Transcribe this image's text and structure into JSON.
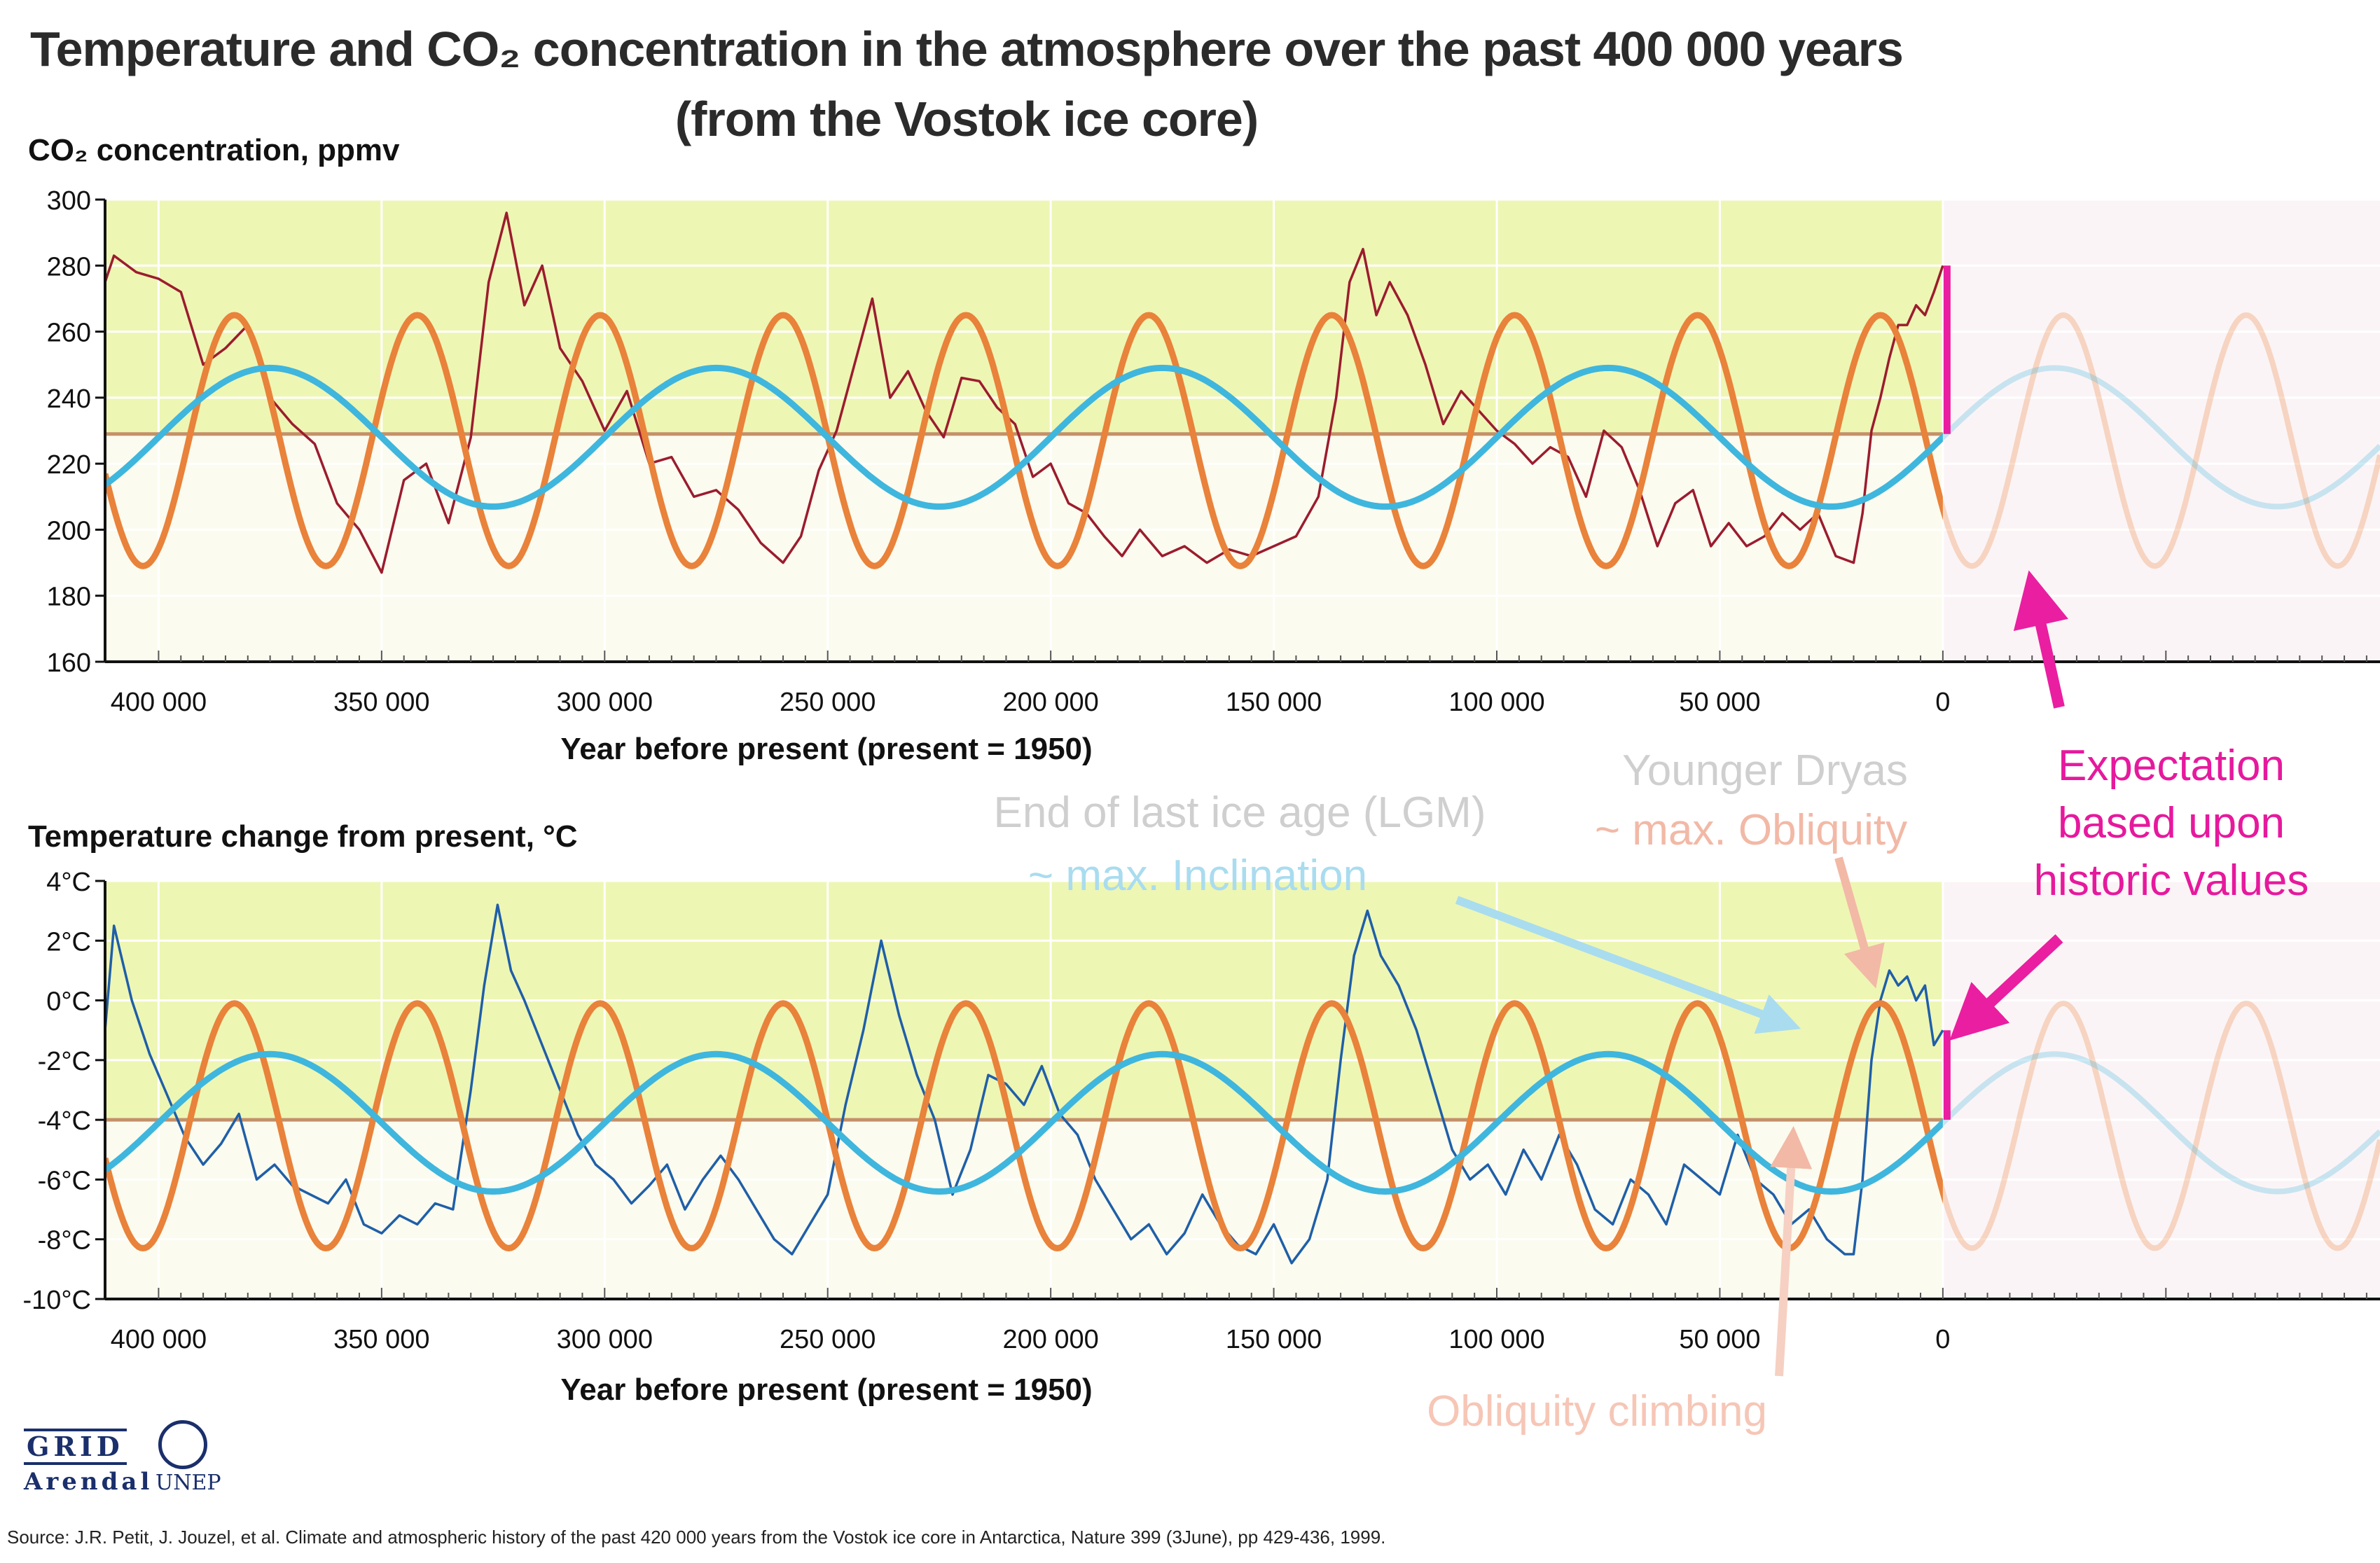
{
  "title": {
    "line1": "Temperature and CO₂ concentration in the atmosphere over the past 400 000 years",
    "line2": "(from the Vostok ice core)"
  },
  "colors": {
    "co2_series": "#9b1c2e",
    "temperature_series": "#1f5fa8",
    "obliquity_fit": "#e9823a",
    "inclination_fit": "#3fb6dd",
    "expectation": "#ea1ea0",
    "baseline": "#c4906a",
    "band_fill": "#eef6b4"
  },
  "annotations": {
    "lgm": "End of last ice age (LGM)",
    "inclination": "~ max. Inclination",
    "younger_dryas": "Younger Dryas",
    "obliquity": "~ max. Obliquity",
    "expectation_1": "Expectation",
    "expectation_2": "based upon",
    "expectation_3": "historic values",
    "obliquity_climbing": "Obliquity climbing"
  },
  "logos": {
    "grid": "GRID",
    "arendal": "Arendal",
    "unep": "UNEP"
  },
  "source": "Source: J.R. Petit, J. Jouzel, et al. Climate and atmospheric history of the past 420 000 years from the Vostok ice core in Antarctica, Nature 399 (3June), pp 429-436, 1999.",
  "chart_data": [
    {
      "type": "line",
      "ylabel": "CO₂ concentration, ppmv",
      "xlabel": "Year before present (present = 1950)",
      "xlim": [
        412000,
        -98000
      ],
      "ylim": [
        160,
        300
      ],
      "x_ticks": [
        400000,
        350000,
        300000,
        250000,
        200000,
        150000,
        100000,
        50000,
        0
      ],
      "x_tick_labels": [
        "400 000",
        "350 000",
        "300 000",
        "250 000",
        "200 000",
        "150 000",
        "100 000",
        "50 000",
        "0"
      ],
      "y_ticks": [
        160,
        180,
        200,
        220,
        240,
        260,
        280,
        300
      ],
      "y_tick_labels": [
        "160",
        "180",
        "200",
        "220",
        "240",
        "260",
        "280",
        "300"
      ],
      "baseline": 229,
      "fits": {
        "obliquity_center": 227,
        "obliquity_amp": 38,
        "obliquity_period": 41000,
        "inclination_center": 228,
        "inclination_amp": 21,
        "inclination_period": 100000
      },
      "series": [
        {
          "name": "CO2",
          "x": [
            412000,
            410000,
            405000,
            400000,
            395000,
            390000,
            385000,
            380000,
            375000,
            370000,
            365000,
            360000,
            355000,
            350000,
            345000,
            340000,
            335000,
            330000,
            326000,
            322000,
            318000,
            314000,
            310000,
            305000,
            300000,
            295000,
            290000,
            285000,
            280000,
            275000,
            270000,
            265000,
            260000,
            256000,
            252000,
            248000,
            244000,
            240000,
            236000,
            232000,
            228000,
            224000,
            220000,
            216000,
            212000,
            208000,
            204000,
            200000,
            196000,
            192000,
            188000,
            184000,
            180000,
            175000,
            170000,
            165000,
            160000,
            155000,
            150000,
            145000,
            140000,
            136000,
            133000,
            130000,
            127000,
            124000,
            120000,
            116000,
            112000,
            108000,
            104000,
            100000,
            96000,
            92000,
            88000,
            84000,
            80000,
            76000,
            72000,
            68000,
            64000,
            60000,
            56000,
            52000,
            48000,
            44000,
            40000,
            36000,
            32000,
            28000,
            24000,
            20000,
            18000,
            16000,
            14000,
            12000,
            10000,
            8000,
            6000,
            4000,
            2000,
            0
          ],
          "y": [
            275,
            283,
            278,
            276,
            272,
            250,
            255,
            262,
            240,
            232,
            226,
            208,
            200,
            187,
            215,
            220,
            202,
            228,
            275,
            296,
            268,
            280,
            255,
            245,
            230,
            242,
            220,
            222,
            210,
            212,
            206,
            196,
            190,
            198,
            218,
            230,
            250,
            270,
            240,
            248,
            236,
            228,
            246,
            245,
            237,
            232,
            216,
            220,
            208,
            205,
            198,
            192,
            200,
            192,
            195,
            190,
            194,
            192,
            195,
            198,
            210,
            240,
            275,
            285,
            265,
            275,
            265,
            250,
            232,
            242,
            236,
            230,
            226,
            220,
            225,
            222,
            210,
            230,
            225,
            212,
            195,
            208,
            212,
            195,
            202,
            195,
            198,
            205,
            200,
            205,
            192,
            190,
            205,
            230,
            240,
            252,
            262,
            262,
            268,
            265,
            272,
            280
          ]
        }
      ]
    },
    {
      "type": "line",
      "ylabel": "Temperature change from present, °C",
      "xlabel": "Year before present (present = 1950)",
      "xlim": [
        412000,
        -98000
      ],
      "ylim": [
        -10,
        4
      ],
      "x_ticks": [
        400000,
        350000,
        300000,
        250000,
        200000,
        150000,
        100000,
        50000,
        0
      ],
      "x_tick_labels": [
        "400 000",
        "350 000",
        "300 000",
        "250 000",
        "200 000",
        "150 000",
        "100 000",
        "50 000",
        "0"
      ],
      "y_ticks": [
        -10,
        -8,
        -6,
        -4,
        -2,
        0,
        2,
        4
      ],
      "y_tick_labels": [
        "-10°C",
        "-8°C",
        "-6°C",
        "-4°C",
        "-2°C",
        "0°C",
        "2°C",
        "4°C"
      ],
      "baseline": -4,
      "fits": {
        "obliquity_center": -4.2,
        "obliquity_amp": 4.1,
        "obliquity_period": 41000,
        "inclination_center": -4.1,
        "inclination_amp": 2.3,
        "inclination_period": 100000
      },
      "series": [
        {
          "name": "Temperature",
          "x": [
            412000,
            410000,
            406000,
            402000,
            398000,
            394000,
            390000,
            386000,
            382000,
            378000,
            374000,
            370000,
            366000,
            362000,
            358000,
            354000,
            350000,
            346000,
            342000,
            338000,
            334000,
            330000,
            327000,
            324000,
            321000,
            318000,
            314000,
            310000,
            306000,
            302000,
            298000,
            294000,
            290000,
            286000,
            282000,
            278000,
            274000,
            270000,
            266000,
            262000,
            258000,
            254000,
            250000,
            246000,
            242000,
            238000,
            234000,
            230000,
            226000,
            222000,
            218000,
            214000,
            210000,
            206000,
            202000,
            198000,
            194000,
            190000,
            186000,
            182000,
            178000,
            174000,
            170000,
            166000,
            162000,
            158000,
            154000,
            150000,
            146000,
            142000,
            138000,
            135000,
            132000,
            129000,
            126000,
            122000,
            118000,
            114000,
            110000,
            106000,
            102000,
            98000,
            94000,
            90000,
            86000,
            82000,
            78000,
            74000,
            70000,
            66000,
            62000,
            58000,
            54000,
            50000,
            46000,
            42000,
            38000,
            34000,
            30000,
            26000,
            22000,
            20000,
            18000,
            16000,
            14000,
            12000,
            10000,
            8000,
            6000,
            4000,
            2000,
            0
          ],
          "y": [
            -1,
            2.5,
            0,
            -1.8,
            -3.2,
            -4.6,
            -5.5,
            -4.8,
            -3.8,
            -6.0,
            -5.5,
            -6.2,
            -6.5,
            -6.8,
            -6.0,
            -7.5,
            -7.8,
            -7.2,
            -7.5,
            -6.8,
            -7.0,
            -3.0,
            0.5,
            3.2,
            1.0,
            0.0,
            -1.5,
            -3.0,
            -4.5,
            -5.5,
            -6.0,
            -6.8,
            -6.2,
            -5.5,
            -7.0,
            -6.0,
            -5.2,
            -6.0,
            -7.0,
            -8.0,
            -8.5,
            -7.5,
            -6.5,
            -3.5,
            -1.0,
            2.0,
            -0.5,
            -2.5,
            -4.0,
            -6.5,
            -5.0,
            -2.5,
            -2.8,
            -3.5,
            -2.2,
            -3.8,
            -4.5,
            -6.0,
            -7.0,
            -8.0,
            -7.5,
            -8.5,
            -7.8,
            -6.5,
            -7.5,
            -8.2,
            -8.5,
            -7.5,
            -8.8,
            -8.0,
            -6.0,
            -2.0,
            1.5,
            3.0,
            1.5,
            0.5,
            -1.0,
            -3.0,
            -5.0,
            -6.0,
            -5.5,
            -6.5,
            -5.0,
            -6.0,
            -4.5,
            -5.5,
            -7.0,
            -7.5,
            -6.0,
            -6.5,
            -7.5,
            -5.5,
            -6.0,
            -6.5,
            -4.5,
            -6.0,
            -6.5,
            -7.5,
            -7.0,
            -8.0,
            -8.5,
            -8.5,
            -6.0,
            -2.0,
            0.0,
            1.0,
            0.5,
            0.8,
            0.0,
            0.5,
            -1.5,
            -1.0
          ]
        }
      ]
    }
  ]
}
